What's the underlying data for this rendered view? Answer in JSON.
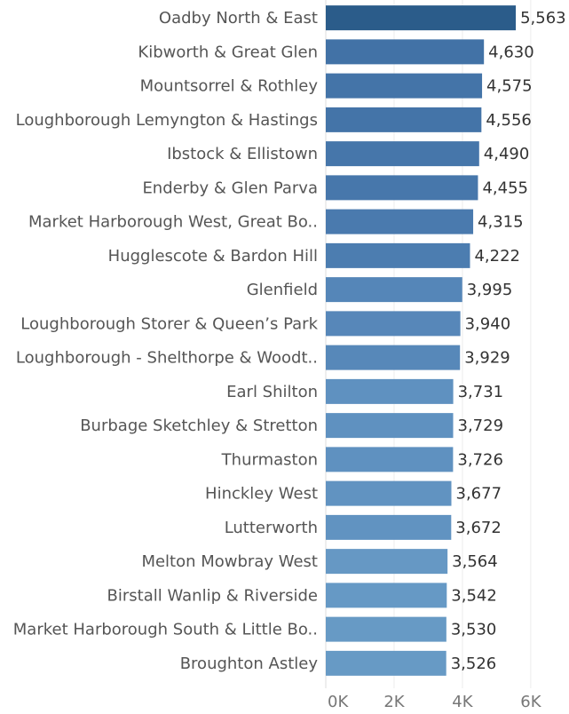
{
  "chart_data": {
    "type": "hbar",
    "categories": [
      "Oadby North & East",
      "Kibworth & Great Glen",
      "Mountsorrel & Rothley",
      "Loughborough Lemyngton & Hastings",
      "Ibstock & Ellistown",
      "Enderby & Glen Parva",
      "Market Harborough West, Great Bo..",
      "Hugglescote & Bardon Hill",
      "Glenfield",
      "Loughborough Storer & Queen’s Park",
      "Loughborough - Shelthorpe & Woodt..",
      "Earl Shilton",
      "Burbage Sketchley & Stretton",
      "Thurmaston",
      "Hinckley West",
      "Lutterworth",
      "Melton Mowbray West",
      "Birstall Wanlip & Riverside",
      "Market Harborough South & Little Bo..",
      "Broughton Astley"
    ],
    "values": [
      5563,
      4630,
      4575,
      4556,
      4490,
      4455,
      4315,
      4222,
      3995,
      3940,
      3929,
      3731,
      3729,
      3726,
      3677,
      3672,
      3564,
      3542,
      3530,
      3526
    ],
    "value_labels": [
      "5,563",
      "4,630",
      "4,575",
      "4,556",
      "4,490",
      "4,455",
      "4,315",
      "4,222",
      "3,995",
      "3,940",
      "3,929",
      "3,731",
      "3,729",
      "3,726",
      "3,677",
      "3,672",
      "3,564",
      "3,542",
      "3,530",
      "3,526"
    ],
    "colors": [
      "#2b5c8a",
      "#4272a6",
      "#4474a8",
      "#4474a8",
      "#4676aa",
      "#4777ab",
      "#4a7aae",
      "#4c7db0",
      "#5586b8",
      "#5787b9",
      "#5788b9",
      "#5f91c0",
      "#5f91c0",
      "#5f91c0",
      "#6193c1",
      "#6193c1",
      "#6698c4",
      "#6699c5",
      "#679ac5",
      "#679ac5"
    ],
    "xlim": [
      0,
      7120
    ],
    "xticks": [
      {
        "value": 0,
        "label": "0K"
      },
      {
        "value": 2000,
        "label": "2K"
      },
      {
        "value": 4000,
        "label": "4K"
      },
      {
        "value": 6000,
        "label": "6K"
      }
    ],
    "grid": true
  }
}
